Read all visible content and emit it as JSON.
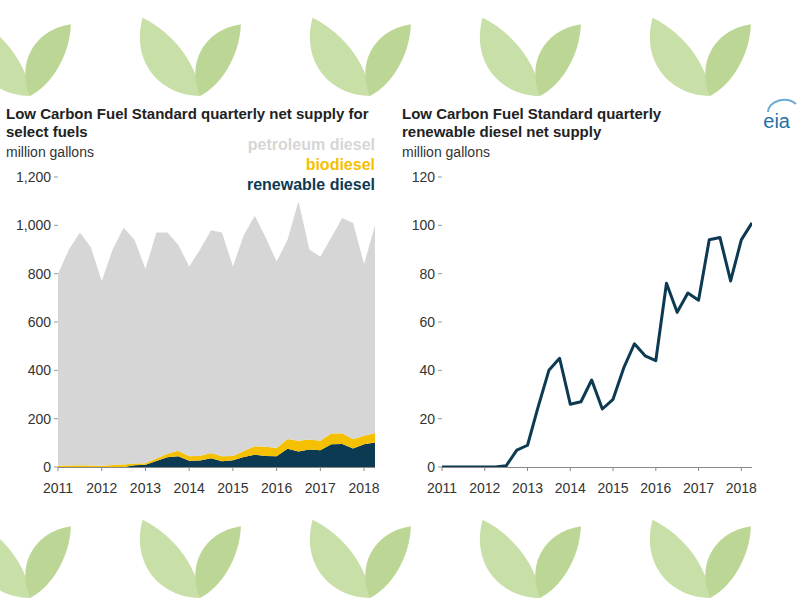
{
  "chart_data": [
    {
      "type": "area",
      "stacked": true,
      "title": "Low Carbon Fuel Standard quarterly net supply for select fuels",
      "subtitle": "million gallons",
      "x": [
        2011,
        2011.25,
        2011.5,
        2011.75,
        2012,
        2012.25,
        2012.5,
        2012.75,
        2013,
        2013.25,
        2013.5,
        2013.75,
        2014,
        2014.25,
        2014.5,
        2014.75,
        2015,
        2015.25,
        2015.5,
        2015.75,
        2016,
        2016.25,
        2016.5,
        2016.75,
        2017,
        2017.25,
        2017.5,
        2017.75,
        2018,
        2018.25
      ],
      "series": [
        {
          "name": "petroleum diesel",
          "color": "#d6d6d6",
          "values": [
            795,
            894,
            963,
            904,
            765,
            892,
            980,
            925,
            804,
            935,
            915,
            853,
            786,
            853,
            922,
            926,
            784,
            894,
            954,
            866,
            771,
            824,
            991,
            786,
            761,
            811,
            890,
            895,
            711,
            859
          ]
        },
        {
          "name": "biodiesel",
          "color": "#f5c000",
          "values": [
            5,
            6,
            7,
            6,
            5,
            8,
            10,
            8,
            7,
            10,
            15,
            22,
            18,
            20,
            22,
            20,
            18,
            25,
            35,
            38,
            35,
            40,
            45,
            42,
            40,
            45,
            45,
            38,
            35,
            40
          ]
        },
        {
          "name": "renewable diesel",
          "color": "#0c3a52",
          "values": [
            0,
            0,
            0,
            0,
            0,
            0,
            0.5,
            7,
            9,
            25,
            40,
            45,
            26,
            27,
            36,
            24,
            28,
            41,
            51,
            46,
            44,
            76,
            64,
            72,
            69,
            94,
            95,
            77,
            94,
            101
          ]
        }
      ],
      "xlim": [
        2011,
        2018.25
      ],
      "xticks": [
        2011,
        2012,
        2013,
        2014,
        2015,
        2016,
        2017,
        2018
      ],
      "ylim": [
        0,
        1200
      ],
      "yticks": [
        0,
        200,
        400,
        600,
        800,
        {
          "value": 1000,
          "label": "1,000"
        },
        {
          "value": 1200,
          "label": "1,200"
        }
      ],
      "grid": false,
      "legend": "top-right"
    },
    {
      "type": "line",
      "title": "Low Carbon Fuel Standard quarterly renewable diesel net supply",
      "subtitle": "million gallons",
      "annotations": [
        "eia"
      ],
      "x": [
        2011,
        2011.25,
        2011.5,
        2011.75,
        2012,
        2012.25,
        2012.5,
        2012.75,
        2013,
        2013.25,
        2013.5,
        2013.75,
        2014,
        2014.25,
        2014.5,
        2014.75,
        2015,
        2015.25,
        2015.5,
        2015.75,
        2016,
        2016.25,
        2016.5,
        2016.75,
        2017,
        2017.25,
        2017.5,
        2017.75,
        2018,
        2018.25
      ],
      "series": [
        {
          "color": "#0c3a52",
          "values": [
            0,
            0,
            0,
            0,
            0,
            0,
            0.5,
            7,
            9,
            25,
            40,
            45,
            26,
            27,
            36,
            24,
            28,
            41,
            51,
            46,
            44,
            76,
            64,
            72,
            69,
            94,
            95,
            77,
            94,
            101
          ]
        }
      ],
      "xlim": [
        2011,
        2018.25
      ],
      "xticks": [
        2011,
        2012,
        2013,
        2014,
        2015,
        2016,
        2017,
        2018
      ],
      "ylim": [
        0,
        120
      ],
      "yticks": [
        0,
        20,
        40,
        60,
        80,
        100,
        120
      ],
      "grid": false
    }
  ]
}
